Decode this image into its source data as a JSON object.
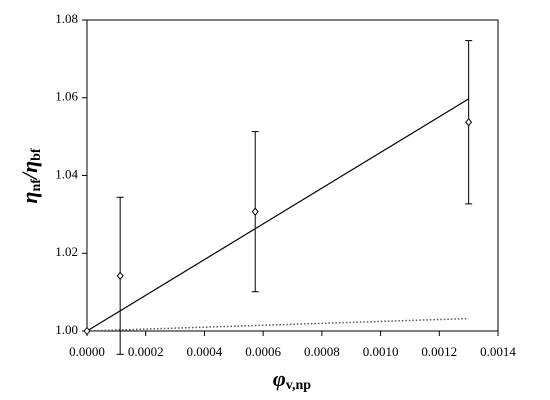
{
  "chart_data": {
    "type": "scatter",
    "ylabel": [
      "η",
      "nf",
      "/η",
      "bf"
    ],
    "xlabel": [
      "φ",
      "v,np"
    ],
    "xlim": [
      0,
      0.0014
    ],
    "xticks": [
      {
        "value": 0,
        "label": "0.0000"
      },
      {
        "value": 0.0002,
        "label": "0.0002"
      },
      {
        "value": 0.0004,
        "label": "0.0004"
      },
      {
        "value": 0.0006,
        "label": "0.0006"
      },
      {
        "value": 0.0008,
        "label": "0.0008"
      },
      {
        "value": 0.001,
        "label": "0.0010"
      },
      {
        "value": 0.0012,
        "label": "0.0012"
      },
      {
        "value": 0.0014,
        "label": "0.0014"
      }
    ],
    "ylim": [
      1.0,
      1.08
    ],
    "yticks": [
      {
        "value": 1.0,
        "label": "1.00"
      },
      {
        "value": 1.02,
        "label": "1.02"
      },
      {
        "value": 1.04,
        "label": "1.04"
      },
      {
        "value": 1.06,
        "label": "1.06"
      },
      {
        "value": 1.08,
        "label": "1.08"
      }
    ],
    "series": [
      {
        "type": "scatter",
        "color": "#000000",
        "x": [
          0,
          0.000113,
          0.000573,
          0.0013
        ],
        "values": [
          1.0,
          1.0142,
          1.0307,
          1.0537
        ],
        "errors": [
          0,
          0.0202,
          0.0206,
          0.021
        ]
      },
      {
        "type": "line",
        "color": "#000000",
        "dash": "solid",
        "x": [
          0,
          0.0013
        ],
        "values": [
          1.0,
          1.0597
        ]
      },
      {
        "type": "line",
        "color": "#555555",
        "dash": "dotted",
        "x": [
          0,
          0.0013
        ],
        "values": [
          1.0,
          1.0032
        ]
      }
    ]
  }
}
